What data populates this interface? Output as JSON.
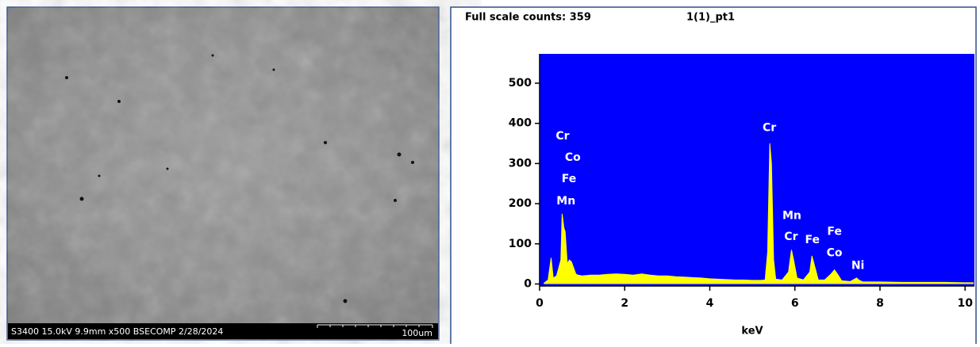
{
  "micrograph": {
    "info": "S3400 15.0kV 9.9mm x500 BSECOMP  2/28/2024",
    "scale_bar": "100um"
  },
  "chart_data": {
    "type": "area",
    "header": "Full scale counts: 359",
    "spectrum_name": "1(1)_pt1",
    "x_label": "keV",
    "background": "#0000ff",
    "x": [
      0.1,
      0.2,
      0.27,
      0.32,
      0.4,
      0.5,
      0.53,
      0.57,
      0.6,
      0.65,
      0.7,
      0.75,
      0.8,
      0.85,
      0.9,
      1.0,
      1.2,
      1.4,
      1.6,
      1.8,
      2.0,
      2.2,
      2.4,
      2.6,
      2.8,
      3.0,
      3.2,
      3.4,
      3.6,
      3.8,
      4.0,
      4.2,
      4.4,
      4.6,
      4.8,
      5.0,
      5.2,
      5.3,
      5.36,
      5.41,
      5.45,
      5.5,
      5.55,
      5.7,
      5.85,
      5.92,
      5.97,
      6.05,
      6.2,
      6.35,
      6.4,
      6.45,
      6.55,
      6.7,
      6.85,
      6.93,
      7.0,
      7.1,
      7.3,
      7.45,
      7.5,
      7.6,
      8.0,
      8.5,
      9.0,
      9.5,
      10.0,
      10.2
    ],
    "series": [
      {
        "name": "1(1)_pt1",
        "color": "#ffff00",
        "values": [
          2,
          10,
          65,
          15,
          20,
          60,
          175,
          140,
          130,
          50,
          60,
          55,
          40,
          25,
          22,
          20,
          22,
          22,
          24,
          25,
          24,
          22,
          25,
          22,
          20,
          20,
          18,
          17,
          16,
          15,
          13,
          12,
          11,
          10,
          10,
          9,
          9,
          10,
          80,
          350,
          300,
          60,
          12,
          10,
          30,
          85,
          60,
          15,
          10,
          30,
          70,
          50,
          10,
          10,
          25,
          35,
          25,
          8,
          6,
          15,
          10,
          5,
          5,
          4,
          4,
          4,
          3,
          3
        ]
      }
    ],
    "xlim": [
      0,
      10.22
    ],
    "ylim": [
      -5,
      573
    ],
    "xticks": [
      0,
      2,
      4,
      6,
      8,
      10
    ],
    "yticks": [
      0,
      100,
      200,
      300,
      400,
      500
    ],
    "annotations": [
      {
        "text": "Cr",
        "x": 0.54,
        "y": 368
      },
      {
        "text": "Co",
        "x": 0.78,
        "y": 315
      },
      {
        "text": "Fe",
        "x": 0.69,
        "y": 261
      },
      {
        "text": "Mn",
        "x": 0.62,
        "y": 206
      },
      {
        "text": "Cr",
        "x": 5.4,
        "y": 389
      },
      {
        "text": "Mn",
        "x": 5.93,
        "y": 170
      },
      {
        "text": "Cr",
        "x": 5.91,
        "y": 117
      },
      {
        "text": "Fe",
        "x": 6.41,
        "y": 109
      },
      {
        "text": "Fe",
        "x": 6.93,
        "y": 130
      },
      {
        "text": "Co",
        "x": 6.93,
        "y": 77
      },
      {
        "text": "Ni",
        "x": 7.48,
        "y": 45
      }
    ]
  }
}
